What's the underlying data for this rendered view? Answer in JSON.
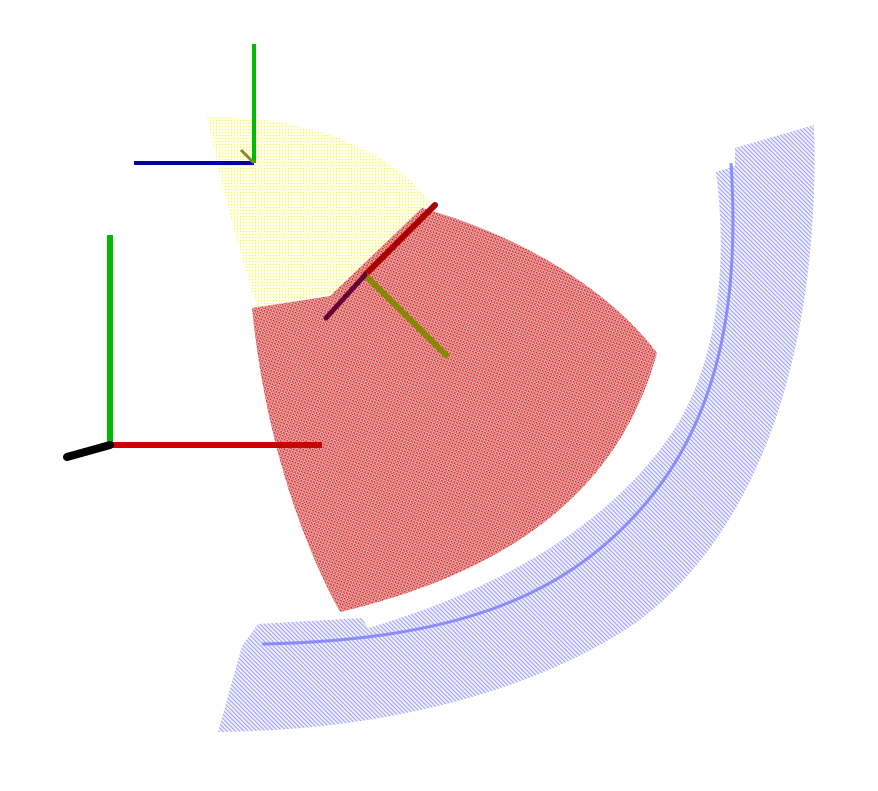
{
  "scene": {
    "background": "#ffffff",
    "point_clouds": [
      {
        "id": "yellow-sector",
        "color": "#f5f06a"
      },
      {
        "id": "red-sector",
        "color": "#e01010"
      },
      {
        "id": "blue-band",
        "color": "#5a5af0"
      }
    ],
    "axis_colors": {
      "x": "#cc0000",
      "y": "#00bb00",
      "z": "#000000",
      "z_alt": "#0000aa"
    }
  }
}
